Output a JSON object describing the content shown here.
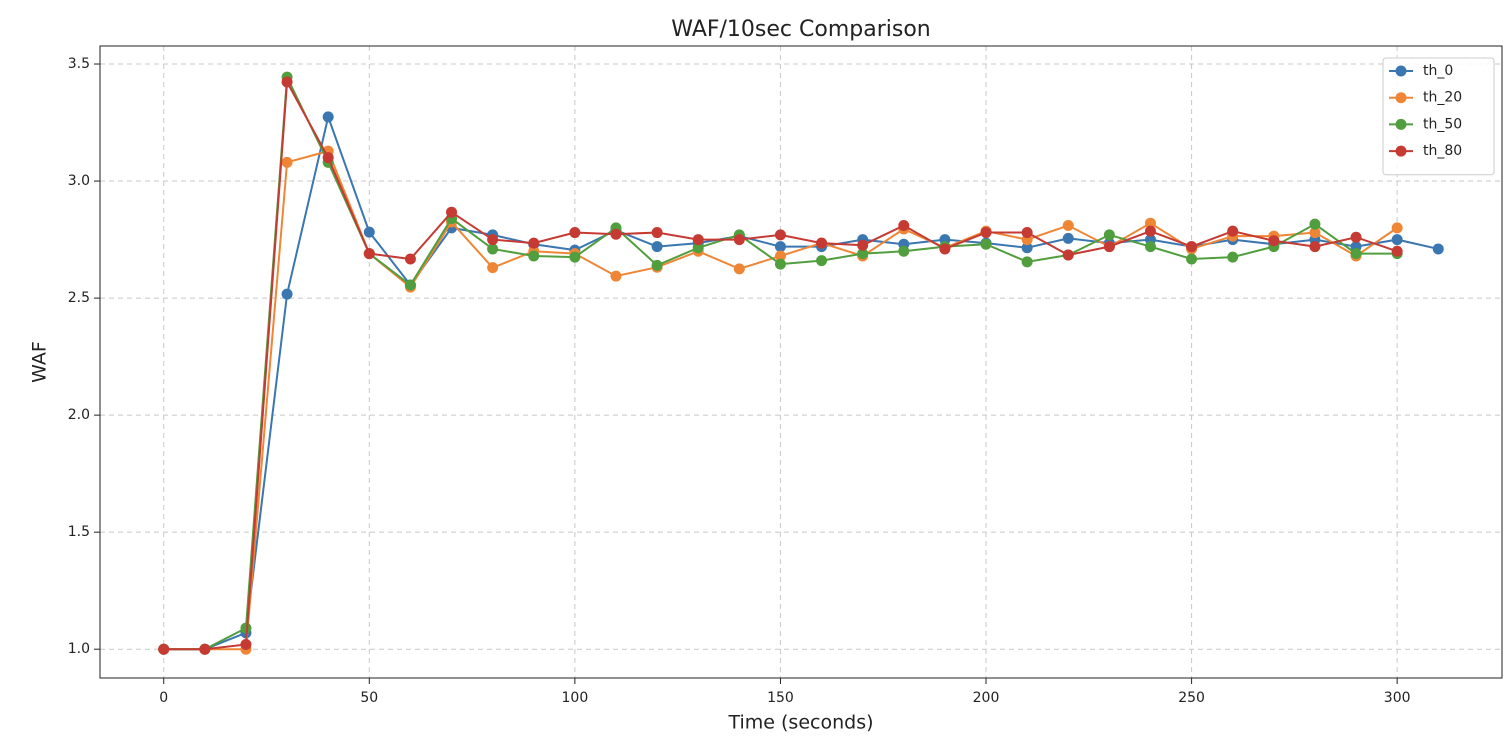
{
  "chart_data": {
    "type": "line",
    "title": "WAF/10sec Comparison",
    "xlabel": "Time (seconds)",
    "ylabel": "WAF",
    "xlim": [
      -15.5,
      325.5
    ],
    "ylim": [
      0.877,
      3.577
    ],
    "xticks": [
      0,
      50,
      100,
      150,
      200,
      250,
      300
    ],
    "yticks": [
      {
        "value": 1,
        "label": "1.0"
      },
      1.5,
      {
        "value": 2,
        "label": "2.0"
      },
      2.5,
      {
        "value": 3,
        "label": "3.0"
      },
      3.5
    ],
    "grid": true,
    "legend": "upper right",
    "marker": "o",
    "series": [
      {
        "name": "th_0",
        "color": "#3a76b0",
        "x": [
          0,
          10,
          20,
          30,
          40,
          50,
          60,
          70,
          80,
          90,
          100,
          110,
          120,
          130,
          140,
          150,
          160,
          170,
          180,
          190,
          200,
          210,
          220,
          230,
          240,
          250,
          260,
          270,
          280,
          290,
          300,
          310
        ],
        "values": [
          1.0,
          1.0,
          1.07,
          2.517,
          3.274,
          2.782,
          2.556,
          2.8,
          2.77,
          2.73,
          2.705,
          2.79,
          2.72,
          2.735,
          2.765,
          2.72,
          2.72,
          2.75,
          2.73,
          2.75,
          2.735,
          2.715,
          2.755,
          2.735,
          2.75,
          2.72,
          2.75,
          2.73,
          2.75,
          2.72,
          2.75,
          2.71
        ]
      },
      {
        "name": "th_20",
        "color": "#ef8636",
        "x": [
          0,
          10,
          20,
          30,
          40,
          50,
          60,
          70,
          80,
          90,
          100,
          110,
          120,
          130,
          140,
          150,
          160,
          170,
          180,
          190,
          200,
          210,
          220,
          230,
          240,
          250,
          260,
          270,
          280,
          290,
          300
        ],
        "values": [
          1.0,
          1.0,
          1.0,
          3.08,
          3.128,
          2.69,
          2.547,
          2.825,
          2.63,
          2.7,
          2.69,
          2.594,
          2.632,
          2.7,
          2.625,
          2.68,
          2.735,
          2.68,
          2.795,
          2.715,
          2.786,
          2.75,
          2.81,
          2.72,
          2.82,
          2.71,
          2.765,
          2.765,
          2.78,
          2.68,
          2.8
        ]
      },
      {
        "name": "th_50",
        "color": "#519e3e",
        "x": [
          0,
          10,
          20,
          30,
          40,
          50,
          60,
          70,
          80,
          90,
          100,
          110,
          120,
          130,
          140,
          150,
          160,
          170,
          180,
          190,
          200,
          210,
          220,
          230,
          240,
          250,
          260,
          270,
          280,
          290,
          300
        ],
        "values": [
          1.0,
          1.0,
          1.09,
          3.444,
          3.08,
          2.69,
          2.556,
          2.84,
          2.71,
          2.68,
          2.675,
          2.8,
          2.64,
          2.715,
          2.77,
          2.645,
          2.66,
          2.69,
          2.7,
          2.72,
          2.73,
          2.655,
          2.684,
          2.77,
          2.72,
          2.667,
          2.675,
          2.72,
          2.816,
          2.69,
          2.69
        ]
      },
      {
        "name": "th_80",
        "color": "#c53a32",
        "x": [
          0,
          10,
          20,
          30,
          40,
          50,
          60,
          70,
          80,
          90,
          100,
          110,
          120,
          130,
          140,
          150,
          160,
          170,
          180,
          190,
          200,
          210,
          220,
          230,
          240,
          250,
          260,
          270,
          280,
          290,
          300
        ],
        "values": [
          1.0,
          1.0,
          1.02,
          3.423,
          3.1,
          2.69,
          2.667,
          2.867,
          2.75,
          2.735,
          2.78,
          2.773,
          2.78,
          2.75,
          2.75,
          2.77,
          2.735,
          2.726,
          2.81,
          2.71,
          2.78,
          2.78,
          2.684,
          2.72,
          2.786,
          2.72,
          2.786,
          2.745,
          2.72,
          2.76,
          2.7
        ]
      }
    ]
  }
}
